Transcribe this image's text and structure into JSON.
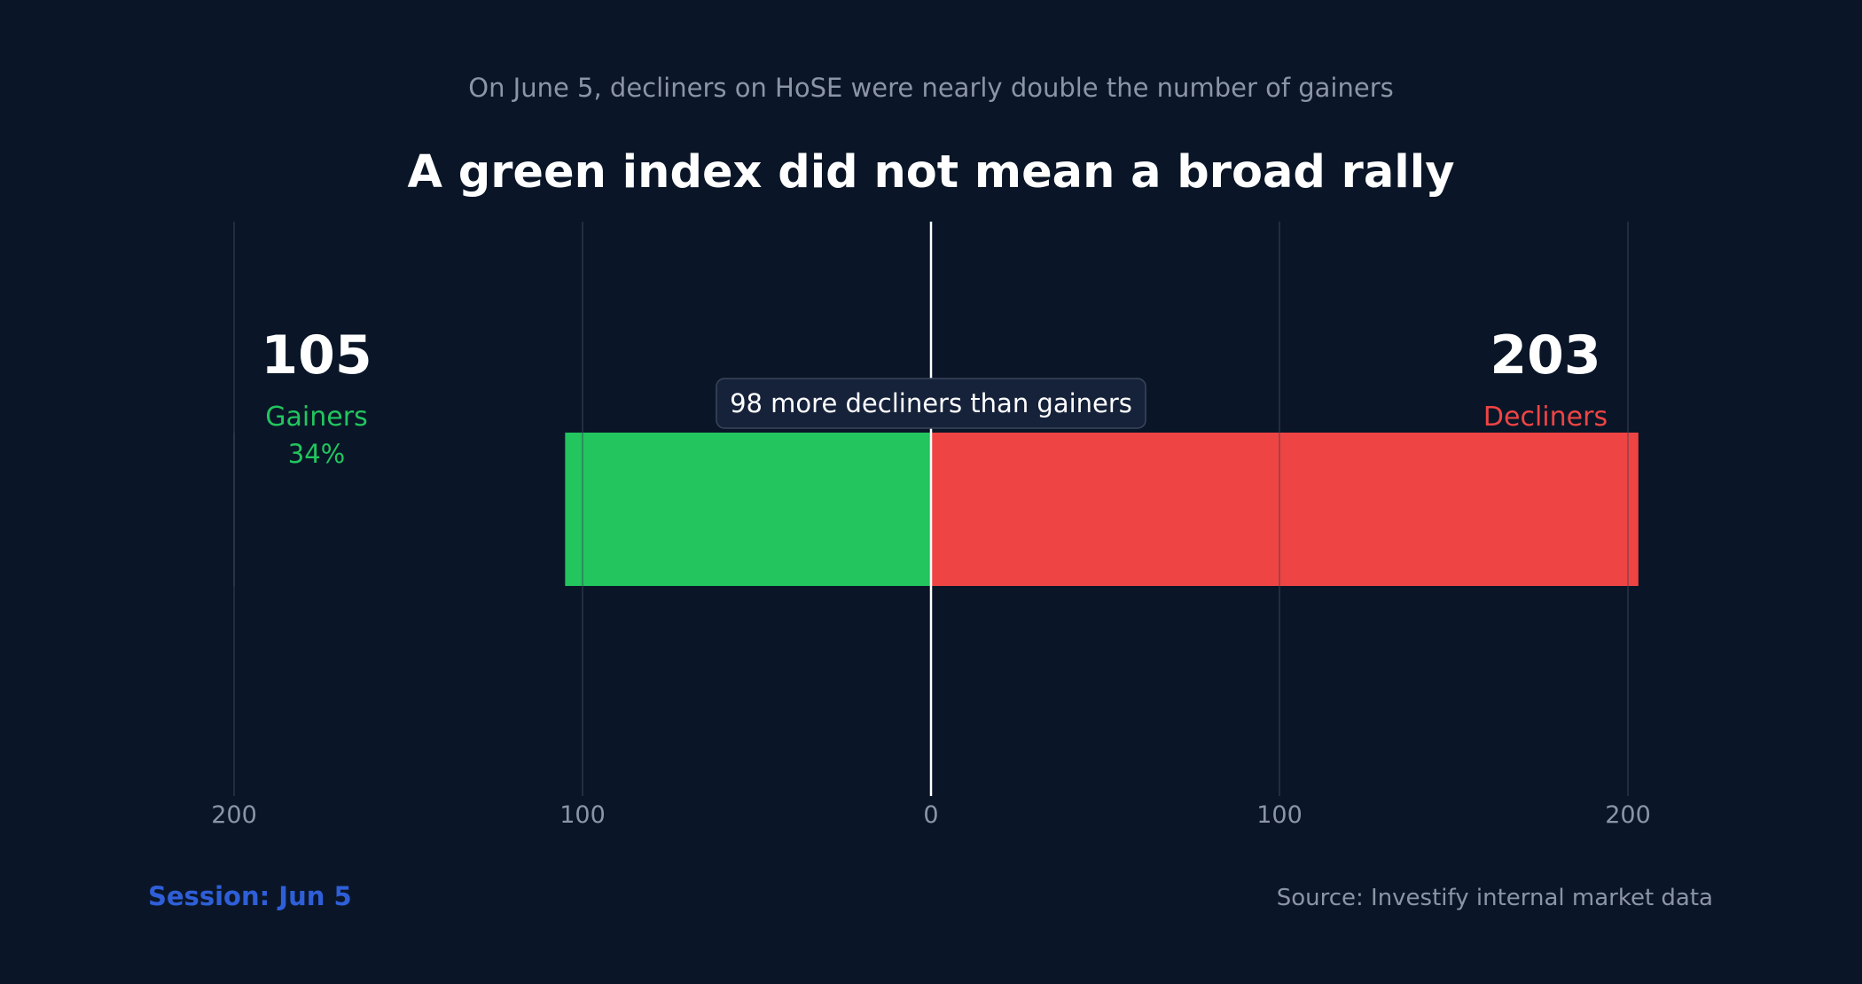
{
  "subtitle": "On June 5, decliners on HoSE were nearly double the number of gainers",
  "title": "A green index did not mean a broad rally",
  "footer": {
    "session": "Session: Jun 5",
    "source": "Source: Investify internal market data"
  },
  "colors": {
    "background": "#0a1628",
    "gainers": "#22c55e",
    "decliners": "#ef4444",
    "session": "#2f5fd8",
    "muted": "#8b95a5",
    "text": "#ffffff",
    "grid": "#2a3444"
  },
  "chart_data": {
    "type": "bar",
    "orientation": "horizontal-diverging",
    "title": "A green index did not mean a broad rally",
    "subtitle": "On June 5, decliners on HoSE were nearly double the number of gainers",
    "series": [
      {
        "name": "Gainers",
        "value": 105,
        "direction": "left",
        "share_label": "34%"
      },
      {
        "name": "Decliners",
        "value": 203,
        "direction": "right"
      }
    ],
    "annotation": "98 more decliners than gainers",
    "axis": {
      "range": [
        -200,
        200
      ],
      "ticks": [
        -200,
        -100,
        0,
        100,
        200
      ],
      "tick_labels": [
        "200",
        "100",
        "0",
        "100",
        "200"
      ]
    },
    "grid": true
  }
}
